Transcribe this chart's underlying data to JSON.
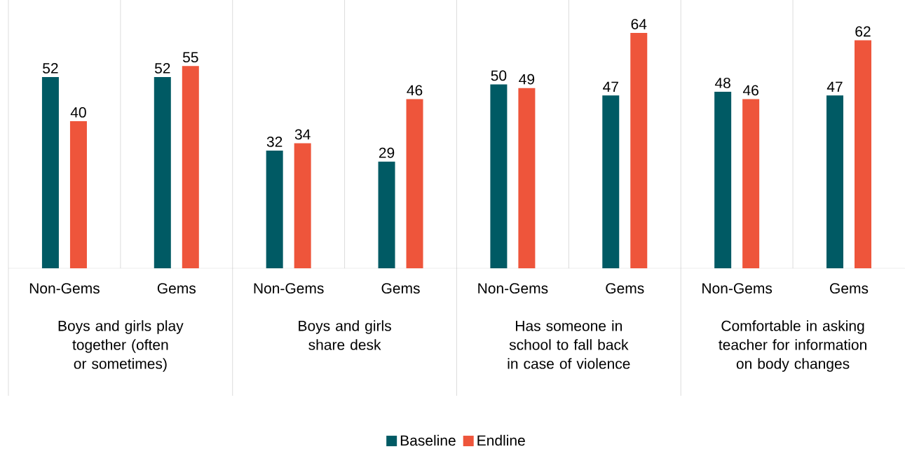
{
  "chart_data": {
    "type": "bar",
    "categories": [
      "Non-Gems",
      "Gems",
      "Non-Gems",
      "Gems",
      "Non-Gems",
      "Gems",
      "Non-Gems",
      "Gems"
    ],
    "series": [
      {
        "name": "Baseline",
        "color": "#005a64",
        "values": [
          52,
          52,
          32,
          29,
          50,
          47,
          48,
          47
        ]
      },
      {
        "name": "Endline",
        "color": "#ee553b",
        "values": [
          40,
          55,
          34,
          46,
          49,
          64,
          46,
          62
        ]
      }
    ],
    "annotations": [
      "Boys and girls play together (often or sometimes)",
      "Boys and girls share desk",
      "Has someone in school to fall back in case of violence",
      "Comfortable in asking teacher for information on body changes"
    ],
    "data_labels": true,
    "legend": "bottom"
  }
}
